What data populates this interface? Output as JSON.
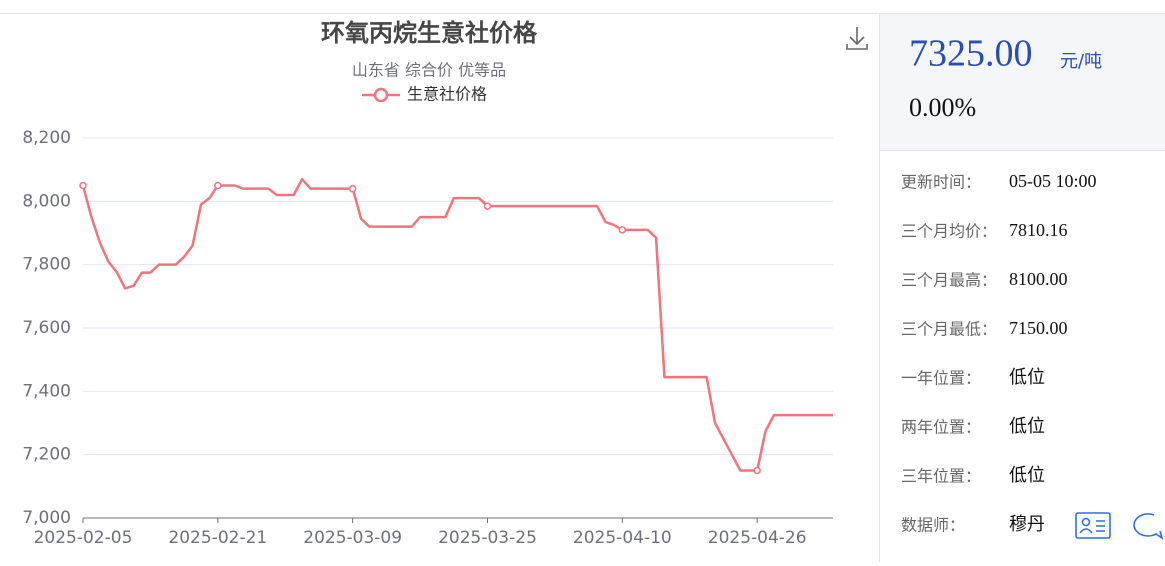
{
  "chart_data": {
    "type": "line",
    "title": "环氧丙烷生意社价格",
    "subtitle": "山东省 综合价 优等品",
    "categories": [
      "2025-02-05",
      null,
      null,
      null,
      null,
      null,
      null,
      null,
      null,
      null,
      null,
      null,
      null,
      null,
      null,
      null,
      "2025-02-21",
      null,
      null,
      null,
      null,
      null,
      null,
      null,
      null,
      null,
      null,
      null,
      null,
      null,
      null,
      null,
      "2025-03-09",
      null,
      null,
      null,
      null,
      null,
      null,
      null,
      null,
      null,
      null,
      null,
      null,
      null,
      null,
      null,
      "2025-03-25",
      null,
      null,
      null,
      null,
      null,
      null,
      null,
      null,
      null,
      null,
      null,
      null,
      null,
      null,
      null,
      "2025-04-10",
      null,
      null,
      null,
      null,
      null,
      null,
      null,
      null,
      null,
      null,
      null,
      null,
      null,
      null,
      null,
      "2025-04-26",
      null,
      null,
      null,
      null,
      null,
      null,
      null,
      null,
      null
    ],
    "series": [
      {
        "name": "生意社价格",
        "color": "#f0737e",
        "values": [
          8050,
          7950,
          7870,
          7810,
          7777,
          7725,
          7733,
          7775,
          7775,
          7800,
          7800,
          7800,
          7825,
          7860,
          7990,
          8010,
          8050,
          8050,
          8050,
          8040,
          8040,
          8040,
          8040,
          8020,
          8020,
          8020,
          8070,
          8040,
          8040,
          8040,
          8040,
          8040,
          8040,
          7945,
          7920,
          7920,
          7920,
          7920,
          7920,
          7920,
          7950,
          7950,
          7950,
          7950,
          8010,
          8010,
          8010,
          8010,
          7985,
          7985,
          7985,
          7985,
          7985,
          7985,
          7985,
          7985,
          7985,
          7985,
          7985,
          7985,
          7985,
          7985,
          7935,
          7925,
          7910,
          7910,
          7910,
          7910,
          7885,
          7445,
          7445,
          7445,
          7445,
          7445,
          7445,
          7300,
          7250,
          7200,
          7150,
          7150,
          7150,
          7275,
          7325,
          7325,
          7325,
          7325,
          7325,
          7325,
          7325,
          7325
        ]
      }
    ],
    "ylim": [
      7000,
      8200
    ],
    "yticks": [
      {
        "value": 7000,
        "label": "7,000"
      },
      {
        "value": 7200,
        "label": "7,200"
      },
      {
        "value": 7400,
        "label": "7,400"
      },
      {
        "value": 7600,
        "label": "7,600"
      },
      {
        "value": 7800,
        "label": "7,800"
      },
      {
        "value": 8000,
        "label": "8,000"
      },
      {
        "value": 8200,
        "label": "8,200"
      }
    ],
    "grid": true
  },
  "price_panel": {
    "price": "7325.00",
    "unit": "元/吨",
    "change": "0.00%",
    "rows": [
      [
        "更新时间：",
        "05-05 10:00"
      ],
      [
        "三个月均价：",
        "7810.16"
      ],
      [
        "三个月最高：",
        "8100.00"
      ],
      [
        "三个月最低：",
        "7150.00"
      ],
      [
        "一年位置：",
        "低位"
      ],
      [
        "两年位置：",
        "低位"
      ],
      [
        "三年位置：",
        "低位"
      ],
      [
        "数据师：",
        "穆丹"
      ]
    ]
  }
}
